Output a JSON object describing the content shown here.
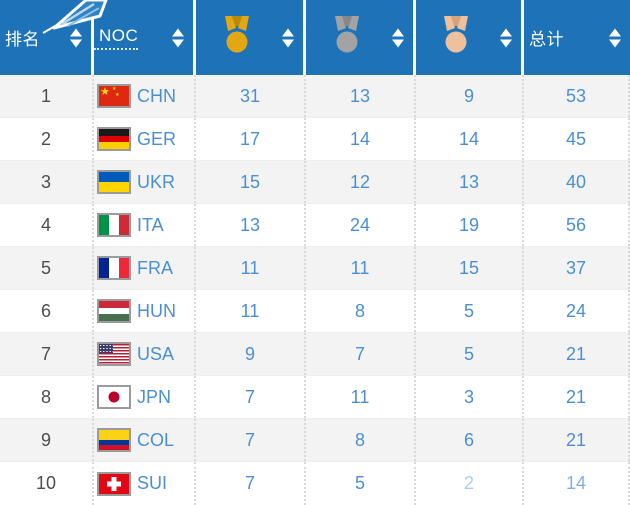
{
  "colors": {
    "header_bg": "#1e73b8",
    "row_alt_bg": "#f3f3f3",
    "row_bg": "#ffffff",
    "link_blue": "#4a8fd6",
    "rank_gray": "#4d4d4d",
    "gold": "#e2a712",
    "silver": "#a3a3a3",
    "bronze": "#eec09b"
  },
  "header": {
    "columns": [
      {
        "key": "rank",
        "type": "label",
        "label": "排名"
      },
      {
        "key": "noc",
        "type": "label",
        "label": "NOC",
        "dotted_underline": true
      },
      {
        "key": "gold",
        "type": "medal",
        "icon": "gold-medal-icon",
        "color": "#e2a712",
        "dark": "#b8890b"
      },
      {
        "key": "silver",
        "type": "medal",
        "icon": "silver-medal-icon",
        "color": "#a3a3a3",
        "dark": "#878787"
      },
      {
        "key": "bronze",
        "type": "medal",
        "icon": "bronze-medal-icon",
        "color": "#eec09b",
        "dark": "#d4a27b"
      },
      {
        "key": "total",
        "type": "label",
        "label": "总计"
      }
    ],
    "sort_icon": "sort-arrows-icon"
  },
  "flags": {
    "CHN": {
      "type": "china",
      "bg": "#de2910",
      "star": "#ffde00"
    },
    "GER": {
      "type": "stripes-h",
      "stripes": [
        [
          "#1a1a1a",
          1
        ],
        [
          "#dd0000",
          1
        ],
        [
          "#ffce00",
          1
        ]
      ]
    },
    "UKR": {
      "type": "stripes-h",
      "stripes": [
        [
          "#005bbb",
          1
        ],
        [
          "#ffd500",
          1
        ]
      ]
    },
    "ITA": {
      "type": "stripes-v",
      "stripes": [
        [
          "#009246",
          1
        ],
        [
          "#ffffff",
          1
        ],
        [
          "#ce2b37",
          1
        ]
      ]
    },
    "FRA": {
      "type": "stripes-v",
      "stripes": [
        [
          "#002395",
          1
        ],
        [
          "#ffffff",
          1
        ],
        [
          "#ed2939",
          1
        ]
      ]
    },
    "HUN": {
      "type": "stripes-h",
      "stripes": [
        [
          "#ce2939",
          1
        ],
        [
          "#ffffff",
          1
        ],
        [
          "#477050",
          1
        ]
      ]
    },
    "USA": {
      "type": "usa",
      "stripe_red": "#b22234",
      "stripe_white": "#ffffff",
      "canton": "#3c3b6e"
    },
    "JPN": {
      "type": "japan",
      "bg": "#ffffff",
      "disc": "#bc002d"
    },
    "COL": {
      "type": "stripes-h",
      "stripes": [
        [
          "#fcd116",
          2
        ],
        [
          "#003893",
          1
        ],
        [
          "#ce1126",
          1
        ]
      ]
    },
    "SUI": {
      "type": "swiss",
      "bg": "#e30613",
      "cross": "#ffffff"
    }
  },
  "rows": [
    {
      "rank": "1",
      "noc": "CHN",
      "gold": "31",
      "silver": "13",
      "bronze": "9",
      "total": "53"
    },
    {
      "rank": "2",
      "noc": "GER",
      "gold": "17",
      "silver": "14",
      "bronze": "14",
      "total": "45"
    },
    {
      "rank": "3",
      "noc": "UKR",
      "gold": "15",
      "silver": "12",
      "bronze": "13",
      "total": "40"
    },
    {
      "rank": "4",
      "noc": "ITA",
      "gold": "13",
      "silver": "24",
      "bronze": "19",
      "total": "56"
    },
    {
      "rank": "5",
      "noc": "FRA",
      "gold": "11",
      "silver": "11",
      "bronze": "15",
      "total": "37"
    },
    {
      "rank": "6",
      "noc": "HUN",
      "gold": "11",
      "silver": "8",
      "bronze": "5",
      "total": "24"
    },
    {
      "rank": "7",
      "noc": "USA",
      "gold": "9",
      "silver": "7",
      "bronze": "5",
      "total": "21"
    },
    {
      "rank": "8",
      "noc": "JPN",
      "gold": "7",
      "silver": "11",
      "bronze": "3",
      "total": "21"
    },
    {
      "rank": "9",
      "noc": "COL",
      "gold": "7",
      "silver": "8",
      "bronze": "6",
      "total": "21"
    },
    {
      "rank": "10",
      "noc": "SUI",
      "gold": "7",
      "silver": "5",
      "bronze": "2",
      "total": "14",
      "faded": {
        "bronze": 0.45,
        "total": 0.7
      }
    }
  ]
}
